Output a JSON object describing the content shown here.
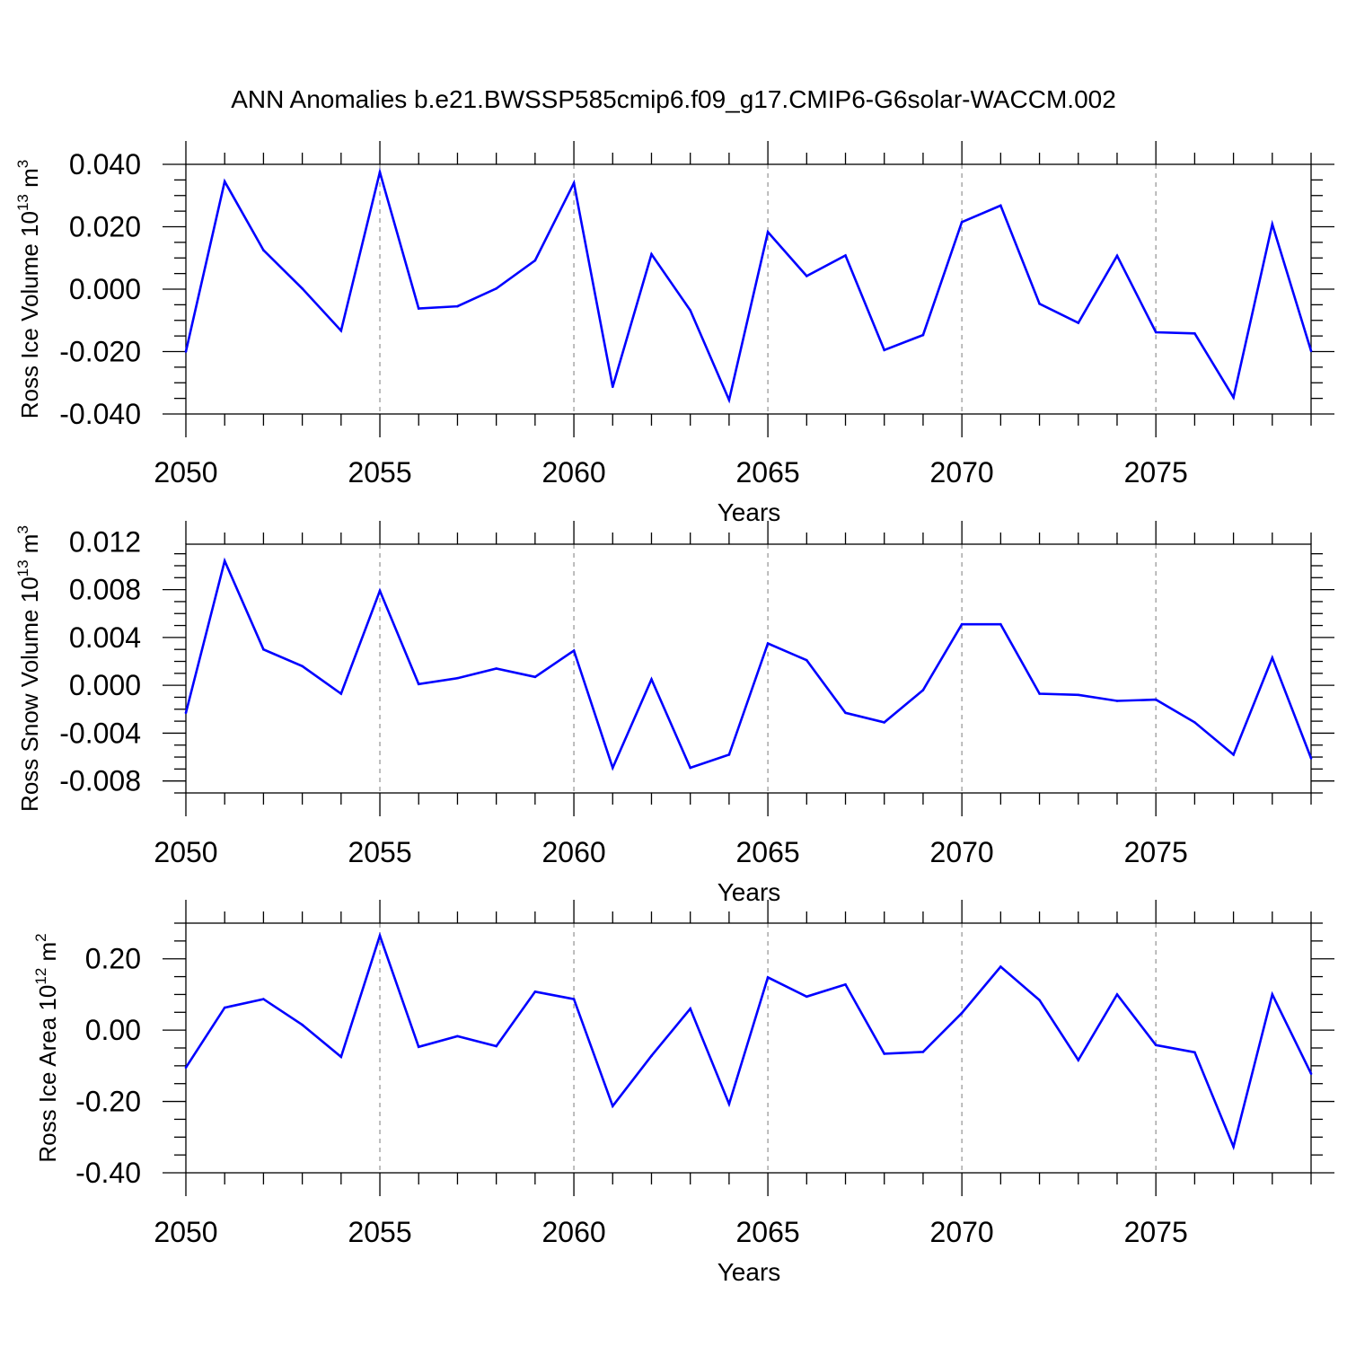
{
  "title": "ANN Anomalies b.e21.BWSSP585cmip6.f09_g17.CMIP6-G6solar-WACCM.002",
  "colors": {
    "line": "#0000ff",
    "axes": "#000000",
    "grid": "#9a9a9a"
  },
  "chart_data": [
    {
      "type": "line",
      "title": "",
      "xlabel": "Years",
      "ylabel": {
        "base": "Ross Ice Volume 10",
        "exp1": "13",
        "unit": " m",
        "exp2": "3"
      },
      "xlim": [
        2050,
        2079
      ],
      "ylim": [
        -0.04,
        0.04
      ],
      "xticks": [
        2050,
        2055,
        2060,
        2065,
        2070,
        2075
      ],
      "xtick_labels": [
        "2050",
        "2055",
        "2060",
        "2065",
        "2070",
        "2075"
      ],
      "yticks": [
        -0.04,
        -0.02,
        0.0,
        0.02,
        0.04
      ],
      "ytick_labels": [
        "-0.040",
        "-0.020",
        "0.000",
        "0.020",
        "0.040"
      ],
      "grid": "vertical dashed at major x ticks",
      "x": [
        2050,
        2051,
        2052,
        2053,
        2054,
        2055,
        2056,
        2057,
        2058,
        2059,
        2060,
        2061,
        2062,
        2063,
        2064,
        2065,
        2066,
        2067,
        2068,
        2069,
        2070,
        2071,
        2072,
        2073,
        2074,
        2075,
        2076,
        2077,
        2078,
        2079
      ],
      "values": [
        -0.02,
        0.0345,
        0.0125,
        0.0002,
        -0.0133,
        0.0375,
        -0.0062,
        -0.0055,
        0.0002,
        0.0092,
        0.034,
        -0.0313,
        0.0112,
        -0.0068,
        -0.0355,
        0.0183,
        0.0042,
        0.0108,
        -0.0195,
        -0.0147,
        0.0215,
        0.0268,
        -0.0047,
        -0.0108,
        0.0107,
        -0.0138,
        -0.0142,
        -0.0347,
        0.0208,
        -0.0198
      ]
    },
    {
      "type": "line",
      "title": "",
      "xlabel": "Years",
      "ylabel": {
        "base": "Ross Snow Volume 10",
        "exp1": "13",
        "unit": " m",
        "exp2": "3"
      },
      "xlim": [
        2050,
        2079
      ],
      "ylim": [
        -0.009,
        0.0118
      ],
      "xticks": [
        2050,
        2055,
        2060,
        2065,
        2070,
        2075
      ],
      "xtick_labels": [
        "2050",
        "2055",
        "2060",
        "2065",
        "2070",
        "2075"
      ],
      "yticks": [
        -0.008,
        -0.004,
        0.0,
        0.004,
        0.008,
        0.012
      ],
      "ytick_labels": [
        "-0.008",
        "-0.004",
        "0.000",
        "0.004",
        "0.008",
        "0.012"
      ],
      "grid": "vertical dashed at major x ticks",
      "x": [
        2050,
        2051,
        2052,
        2053,
        2054,
        2055,
        2056,
        2057,
        2058,
        2059,
        2060,
        2061,
        2062,
        2063,
        2064,
        2065,
        2066,
        2067,
        2068,
        2069,
        2070,
        2071,
        2072,
        2073,
        2074,
        2075,
        2076,
        2077,
        2078,
        2079
      ],
      "values": [
        -0.0023,
        0.0104,
        0.003,
        0.0016,
        -0.0007,
        0.0079,
        0.0001,
        0.0006,
        0.0014,
        0.0007,
        0.0029,
        -0.0069,
        0.0005,
        -0.0069,
        -0.0058,
        0.0035,
        0.0021,
        -0.0023,
        -0.0031,
        -0.0004,
        0.0051,
        0.0051,
        -0.0007,
        -0.0008,
        -0.0013,
        -0.0012,
        -0.0031,
        -0.0058,
        0.0023,
        -0.0061
      ]
    },
    {
      "type": "line",
      "title": "",
      "xlabel": "Years",
      "ylabel": {
        "base": "Ross Ice Area 10",
        "exp1": "12",
        "unit": " m",
        "exp2": "2"
      },
      "xlim": [
        2050,
        2079
      ],
      "ylim": [
        -0.4,
        0.3
      ],
      "xticks": [
        2050,
        2055,
        2060,
        2065,
        2070,
        2075
      ],
      "xtick_labels": [
        "2050",
        "2055",
        "2060",
        "2065",
        "2070",
        "2075"
      ],
      "yticks": [
        -0.4,
        -0.2,
        0.0,
        0.2
      ],
      "ytick_labels": [
        "-0.40",
        "-0.20",
        "0.00",
        "0.20"
      ],
      "grid": "vertical dashed at major x ticks",
      "x": [
        2050,
        2051,
        2052,
        2053,
        2054,
        2055,
        2056,
        2057,
        2058,
        2059,
        2060,
        2061,
        2062,
        2063,
        2064,
        2065,
        2066,
        2067,
        2068,
        2069,
        2070,
        2071,
        2072,
        2073,
        2074,
        2075,
        2076,
        2077,
        2078,
        2079
      ],
      "values": [
        -0.105,
        0.063,
        0.087,
        0.015,
        -0.075,
        0.265,
        -0.047,
        -0.017,
        -0.045,
        0.108,
        0.087,
        -0.213,
        -0.072,
        0.06,
        -0.207,
        0.148,
        0.094,
        0.128,
        -0.066,
        -0.061,
        0.048,
        0.178,
        0.084,
        -0.084,
        0.1,
        -0.042,
        -0.062,
        -0.327,
        0.1,
        -0.122
      ]
    }
  ]
}
